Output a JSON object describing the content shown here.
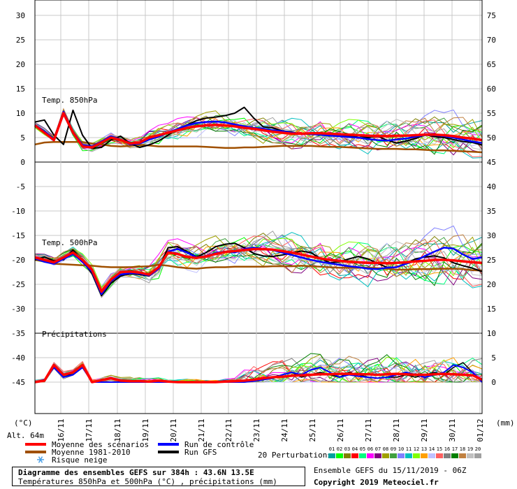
{
  "chart_data": {
    "type": "line",
    "x_dates": [
      "16/11",
      "17/11",
      "18/11",
      "19/11",
      "20/11",
      "21/11",
      "22/11",
      "23/11",
      "24/11",
      "25/11",
      "26/11",
      "27/11",
      "28/11",
      "29/11",
      "30/11",
      "01/12"
    ],
    "left_ticks": [
      "30",
      "25",
      "20",
      "15",
      "10",
      "5",
      "0",
      "-5",
      "-10",
      "-15",
      "-20",
      "-25",
      "-30",
      "-35",
      "-40",
      "-45"
    ],
    "right_ticks": [
      "75",
      "70",
      "65",
      "60",
      "55",
      "50",
      "45",
      "40",
      "35",
      "30",
      "25",
      "20",
      "15",
      "10",
      "5",
      "0"
    ],
    "left_unit": "(°C)",
    "right_unit": "(mm)",
    "altitude": "Alt. 64m",
    "panels": {
      "t850": {
        "label": "Temp. 850hPa",
        "scenario_mean": [
          7.5,
          6,
          4.5,
          10,
          6,
          3.2,
          3,
          4,
          5,
          4.5,
          3.8,
          4,
          5,
          5.5,
          6,
          6.5,
          7,
          7.3,
          7.5,
          7.6,
          7.5,
          7.3,
          7,
          6.8,
          6.5,
          6.2,
          6,
          5.8,
          5.8,
          5.9,
          5.9,
          5.8,
          5.7,
          5.6,
          5.5,
          5.4,
          5.3,
          5.3,
          5.4,
          5.4,
          5.5,
          5.6,
          5.6,
          5.5,
          5.3,
          5,
          4.8,
          4.5
        ],
        "control": [
          7.6,
          6.3,
          4.7,
          10.3,
          6.2,
          3.5,
          3.2,
          4.2,
          5.3,
          4.6,
          3.6,
          3.8,
          4.6,
          5.2,
          6,
          6.8,
          7.5,
          8,
          8.2,
          8.3,
          8.1,
          7.7,
          7.3,
          7,
          6.8,
          6.5,
          6.3,
          6,
          5.8,
          5.7,
          5.6,
          5.4,
          5.3,
          5.1,
          5,
          4.7,
          4.5,
          4.4,
          4.6,
          4.8,
          5.2,
          5.5,
          5.5,
          5.3,
          5,
          4.6,
          4.2,
          3.9
        ],
        "gfs": [
          8.2,
          8.6,
          5.5,
          3.6,
          10.6,
          5.5,
          2.8,
          3,
          4.5,
          5.3,
          3.8,
          3,
          3.5,
          4.3,
          5.5,
          6.8,
          7.6,
          8.5,
          9,
          9.2,
          9.5,
          10,
          11.2,
          9,
          7.2,
          7,
          6.4,
          6.1,
          5.7,
          5.8,
          6,
          5.8,
          5.5,
          5.2,
          5.4,
          5,
          5.3,
          4.5,
          3.9,
          4.3,
          4.8,
          5.6,
          5.2,
          5,
          4.6,
          4.2,
          4,
          3.5
        ],
        "climate_mean": [
          3.6,
          4,
          4.1,
          4.1,
          4.1,
          4.1,
          3.8,
          3.6,
          3.3,
          3.2,
          3.3,
          3.5,
          3.4,
          3.2,
          3.2,
          3.2,
          3.2,
          3.2,
          3.1,
          3,
          2.9,
          2.9,
          3,
          3,
          3.1,
          3.2,
          3.3,
          3.3,
          3.3,
          3.3,
          3.2,
          3.1,
          3.1,
          3,
          2.9,
          2.8,
          2.7,
          2.7,
          2.7,
          2.6,
          2.6,
          2.5,
          2.4,
          2.4,
          2.3,
          2.2,
          2.1,
          2
        ]
      },
      "t500": {
        "label": "Temp. 500hPa",
        "scenario_mean": [
          -19.5,
          -20,
          -20.5,
          -19.5,
          -18.5,
          -20,
          -22,
          -26.5,
          -24,
          -22.5,
          -22.4,
          -22.6,
          -23,
          -21.5,
          -18.5,
          -18.8,
          -19.4,
          -19.6,
          -19.3,
          -18.8,
          -18.4,
          -18.2,
          -18,
          -17.8,
          -17.8,
          -17.9,
          -18.2,
          -18.5,
          -18.9,
          -19.3,
          -19.7,
          -20,
          -20.2,
          -20.4,
          -20.5,
          -20.6,
          -20.6,
          -20.7,
          -20.6,
          -20.5,
          -20.3,
          -20.2,
          -20,
          -20,
          -20.1,
          -20.3,
          -20.5,
          -20.6
        ],
        "control": [
          -19.7,
          -20.4,
          -20.8,
          -19.8,
          -18.8,
          -20.4,
          -22.4,
          -27,
          -24.3,
          -23,
          -22.7,
          -22.8,
          -23.2,
          -21.8,
          -18.3,
          -17.8,
          -18.5,
          -19.5,
          -19.2,
          -18.6,
          -18.3,
          -18.5,
          -17.8,
          -17.5,
          -17.8,
          -18,
          -18.5,
          -19,
          -19.5,
          -20,
          -20.4,
          -20.7,
          -21,
          -21.3,
          -21.5,
          -21.8,
          -21.9,
          -21.6,
          -21.5,
          -20.8,
          -20.2,
          -19.2,
          -18.3,
          -17.5,
          -17.7,
          -18.9,
          -19.8,
          -19.5
        ],
        "gfs": [
          -20,
          -19.4,
          -20.2,
          -20,
          -18,
          -20.2,
          -22.8,
          -27.3,
          -24.8,
          -23.3,
          -22.8,
          -23,
          -23.3,
          -21.8,
          -17.5,
          -17.3,
          -18.3,
          -19.4,
          -18.5,
          -17.3,
          -16.8,
          -16.6,
          -17.5,
          -18.7,
          -19.2,
          -19.3,
          -19,
          -18.6,
          -18.2,
          -18.5,
          -19.7,
          -20.6,
          -20.4,
          -19.8,
          -19.3,
          -19.8,
          -20.7,
          -21.5,
          -21.5,
          -20.7,
          -19.8,
          -19.4,
          -19.2,
          -19.6,
          -20.6,
          -21.2,
          -21.7,
          -22.4
        ],
        "climate_mean": [
          -20,
          -20.3,
          -20.8,
          -20.9,
          -21,
          -21.1,
          -21.2,
          -21.4,
          -21.5,
          -21.5,
          -21.5,
          -21.4,
          -21.3,
          -21,
          -21.2,
          -21.5,
          -21.7,
          -21.8,
          -21.6,
          -21.5,
          -21.5,
          -21.4,
          -21.4,
          -21.4,
          -21.4,
          -21.3,
          -21.3,
          -21.3,
          -21.2,
          -21.3,
          -21.4,
          -21.5,
          -21.6,
          -21.6,
          -21.6,
          -21.6,
          -21.7,
          -21.8,
          -22,
          -22,
          -21.9,
          -21.9,
          -21.9,
          -21.8,
          -21.8,
          -21.9,
          -22.1,
          -22.2
        ]
      },
      "precip": {
        "label": "Précipitations",
        "scenario_mean": [
          0,
          0.3,
          3.5,
          1.5,
          2,
          3.5,
          0,
          0.4,
          0.8,
          0.3,
          0.2,
          0.2,
          0.1,
          0.3,
          0.1,
          0,
          0,
          0,
          0,
          0,
          0.1,
          0.2,
          0.3,
          0.5,
          0.8,
          1,
          1.1,
          1.3,
          1.4,
          1.5,
          1.6,
          1.6,
          1.7,
          1.7,
          1.6,
          1.6,
          1.5,
          1.6,
          1.7,
          1.6,
          1.5,
          1.5,
          1.6,
          1.7,
          1.6,
          1.5,
          1.4,
          0.5
        ],
        "control": [
          0,
          0.5,
          3,
          1,
          1.5,
          3,
          0,
          0,
          0,
          0,
          0,
          0,
          0,
          0,
          0,
          0,
          0,
          0,
          0,
          0,
          0,
          0,
          0,
          0.2,
          0.5,
          0.8,
          1.5,
          2,
          1.5,
          2.5,
          3,
          2,
          1,
          1.5,
          1.2,
          1,
          0.8,
          1,
          1.5,
          2,
          1.5,
          1,
          1.5,
          2,
          3.5,
          3,
          2,
          0
        ],
        "gfs": [
          0,
          0.5,
          3.5,
          1.5,
          1.5,
          3,
          0,
          0,
          0,
          0,
          0,
          0,
          0,
          0,
          0,
          0,
          0,
          0,
          0,
          0,
          0,
          0,
          0,
          0.2,
          0.5,
          1,
          1.5,
          2,
          1,
          1.5,
          2,
          1.5,
          1,
          2,
          1.5,
          1,
          0.8,
          1,
          1,
          1.5,
          1,
          1.5,
          2,
          1.5,
          3,
          4,
          2,
          0
        ]
      }
    },
    "legend": {
      "scenario_mean": "Moyenne des scénarios",
      "climate_mean": "Moyenne 1981-2010",
      "snow_risk": "Risque neige",
      "control": "Run de contrôle",
      "gfs": "Run GFS",
      "perturbations": "20 Perturbations",
      "perturbation_ids": [
        "01",
        "02",
        "03",
        "04",
        "05",
        "06",
        "07",
        "08",
        "09",
        "10",
        "11",
        "12",
        "13",
        "14",
        "15",
        "16",
        "17",
        "18",
        "19",
        "20"
      ],
      "perturbation_colors": [
        "#00a0a0",
        "#00ff00",
        "#808000",
        "#ff0000",
        "#00ff80",
        "#ff00ff",
        "#800080",
        "#a0a000",
        "#40a040",
        "#8080ff",
        "#00c0c0",
        "#80ff00",
        "#ffa000",
        "#c0c0ff",
        "#ff6060",
        "#808080",
        "#008000",
        "#c08040",
        "#c0c0c0",
        "#a0a0a0"
      ],
      "scenario_color": "#ff0000",
      "control_color": "#0000ff",
      "gfs_color": "#000000",
      "climate_color": "#a05000"
    }
  },
  "footer": {
    "title_line1": "Diagramme des ensembles GEFS sur 384h : 43.6N 13.5E",
    "title_line2": "Températures 850hPa et 500hPa (°C) , précipitations (mm)",
    "run_info": "Ensemble GEFS du 15/11/2019 - 06Z",
    "copyright": "Copyright 2019 Meteociel.fr"
  }
}
